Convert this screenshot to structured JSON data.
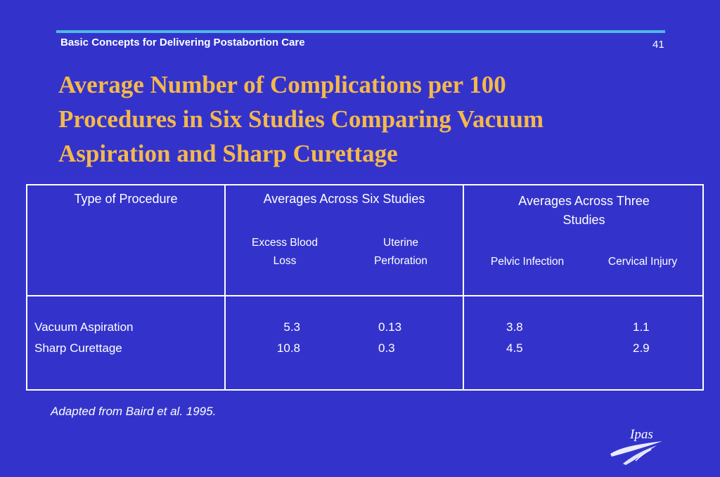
{
  "header": {
    "text": "Basic Concepts for Delivering Postabortion Care",
    "slide_number": "41"
  },
  "title_lines": [
    "Average Number of Complications per 100",
    "Procedures in Six Studies Comparing Vacuum",
    "Aspiration and Sharp Curettage"
  ],
  "table": {
    "col1_header": "Type of Procedure",
    "group1": {
      "header": "Averages Across Six Studies",
      "sub1_line1": "Excess Blood",
      "sub1_line2": "Loss",
      "sub2_line1": "Uterine",
      "sub2_line2": "Perforation"
    },
    "group2": {
      "header_line1": "Averages Across Three",
      "header_line2": "Studies",
      "sub1": "Pelvic Infection",
      "sub2": "Cervical Injury"
    },
    "rows": [
      {
        "procedure": "Vacuum Aspiration",
        "blood_loss": "5.3",
        "perforation": "0.13",
        "pelvic": "3.8",
        "cervical": "1.1"
      },
      {
        "procedure": "Sharp Curettage",
        "blood_loss": "10.8",
        "perforation": "0.3",
        "pelvic": "4.5",
        "cervical": "2.9"
      }
    ]
  },
  "footnote": "Adapted from Baird et al. 1995.",
  "logo": {
    "text": "Ipas",
    "icon": "ipas-swoosh-logo-icon"
  },
  "colors": {
    "background": "#3333cc",
    "title": "#f5b84a",
    "rule": "#4fb8e6",
    "text": "#ffffff"
  }
}
